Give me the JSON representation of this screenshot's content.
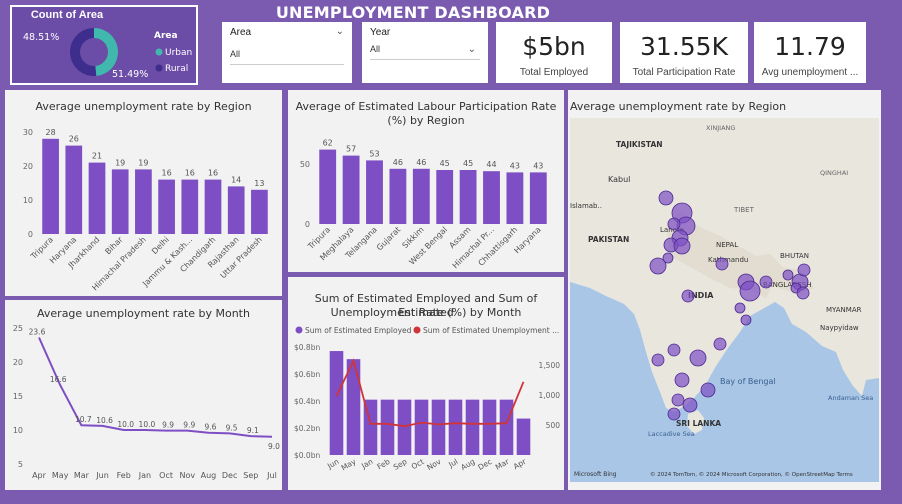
{
  "dashboard": {
    "title": "UNEMPLOYMENT DASHBOARD"
  },
  "colors": {
    "bar": "#7e4fc4",
    "line_red": "#d13438",
    "urban": "#41b8ae",
    "rural": "#3d2d8c",
    "background": "#7b5bb0"
  },
  "donut": {
    "title": "Count of Area",
    "legend_title": "Area",
    "items": [
      {
        "label": "Urban",
        "pct_text": "48.51%",
        "value": 48.51
      },
      {
        "label": "Rural",
        "pct_text": "51.49%",
        "value": 51.49
      }
    ]
  },
  "slicers": [
    {
      "label": "Area",
      "value": "All",
      "icon": "chevron-down-icon"
    },
    {
      "label": "Year",
      "value": "All",
      "icon": "chevron-down-icon"
    }
  ],
  "kpis": [
    {
      "value": "$5bn",
      "caption": "Total Employed"
    },
    {
      "value": "31.55K",
      "caption": "Total Participation Rate"
    },
    {
      "value": "11.79",
      "caption": "Avg unemployment ..."
    }
  ],
  "panels": {
    "region_bar": {
      "title": "Average unemployment rate by Region"
    },
    "participation_bar": {
      "title_line1": "Average of Estimated Labour Participation Rate",
      "title_line2": "(%) by Region"
    },
    "month_line": {
      "title": "Average unemployment rate by Month"
    },
    "combo": {
      "title_line1": "Sum of Estimated Employed and Sum of Estimated",
      "title_line2": "Unemployment Rate (%) by Month",
      "legend": [
        "Sum of  Estimated Employed",
        "Sum of  Estimated Unemployment ..."
      ]
    },
    "map": {
      "title": "Average unemployment rate by Region",
      "labels": [
        "TAJIKISTAN",
        "Kabul",
        "PAKISTAN",
        "Lahore",
        "TIBET",
        "NEPAL",
        "Kathmandu",
        "BHUTAN",
        "BANGLADESH",
        "MYANMAR",
        "INDIA",
        "Naypyidaw",
        "Bay of Bengal",
        "Andaman Sea",
        "Laccadive Sea",
        "SRI LANKA",
        "XINJIANG",
        "QINGHAI",
        "Islamab.."
      ],
      "attribution_left": "Microsoft Bing",
      "attribution_right": "© 2024 TomTom, © 2024 Microsoft Corporation, © OpenStreetMap  Terms"
    }
  },
  "chart_data": [
    {
      "type": "bar",
      "title": "Average unemployment rate by Region",
      "categories": [
        "Tripura",
        "Haryana",
        "Jharkhand",
        "Bihar",
        "Himachal Pradesh",
        "Delhi",
        "Jammu & Kash...",
        "Chandigarh",
        "Rajasthan",
        "Uttar Pradesh"
      ],
      "values": [
        28,
        26,
        21,
        19,
        19,
        16,
        16,
        16,
        14,
        13
      ],
      "ylim": [
        0,
        30
      ],
      "yticks": [
        0,
        10,
        20,
        30
      ]
    },
    {
      "type": "bar",
      "title": "Average of Estimated Labour Participation Rate (%) by Region",
      "categories": [
        "Tripura",
        "Meghalaya",
        "Telangana",
        "Gujarat",
        "Sikkim",
        "West Bengal",
        "Assam",
        "Himachal Pr...",
        "Chhattisgarh",
        "Haryana"
      ],
      "values": [
        62,
        57,
        53,
        46,
        46,
        45,
        45,
        44,
        43,
        43
      ],
      "ylim": [
        0,
        70
      ],
      "yticks": [
        0,
        50
      ]
    },
    {
      "type": "line",
      "title": "Average unemployment rate by Month",
      "categories": [
        "Apr",
        "May",
        "Mar",
        "Jun",
        "Feb",
        "Jan",
        "Oct",
        "Nov",
        "Aug",
        "Dec",
        "Sep",
        "Jul"
      ],
      "values": [
        23.6,
        16.6,
        10.7,
        10.6,
        10.0,
        10.0,
        9.9,
        9.9,
        9.6,
        9.5,
        9.1,
        9.0
      ],
      "labels": [
        "23.6",
        "16.6",
        "10.7",
        "10.6",
        "10.0",
        "10.0",
        "9.9",
        "9.9",
        "9.6",
        "9.5",
        "9.1",
        "9.0"
      ],
      "ylim": [
        5,
        25
      ],
      "yticks": [
        5,
        10,
        15,
        20,
        25
      ]
    },
    {
      "type": "bar",
      "title": "Sum of Estimated Employed and Sum of Estimated Unemployment Rate (%) by Month",
      "categories": [
        "Jun",
        "May",
        "Jan",
        "Feb",
        "Sep",
        "Oct",
        "Nov",
        "Jul",
        "Aug",
        "Dec",
        "Mar",
        "Apr"
      ],
      "series": [
        {
          "name": "Sum of  Estimated Employed",
          "values": [
            0.77,
            0.71,
            0.41,
            0.41,
            0.41,
            0.41,
            0.41,
            0.41,
            0.41,
            0.41,
            0.41,
            0.27
          ]
        },
        {
          "name": "Sum of  Estimated Unemployment ...",
          "values": [
            980,
            1570,
            520,
            520,
            480,
            540,
            510,
            530,
            520,
            520,
            530,
            1220
          ]
        }
      ],
      "ylim": [
        0,
        0.8
      ],
      "yticks_left": [
        "$0.0bn",
        "$0.2bn",
        "$0.4bn",
        "$0.6bn",
        "$0.8bn"
      ],
      "ylim_right": [
        0,
        1800
      ],
      "yticks_right": [
        500,
        1000,
        1500
      ],
      "ytick_right_labels": [
        "500",
        "1,000",
        "1,500"
      ]
    }
  ]
}
